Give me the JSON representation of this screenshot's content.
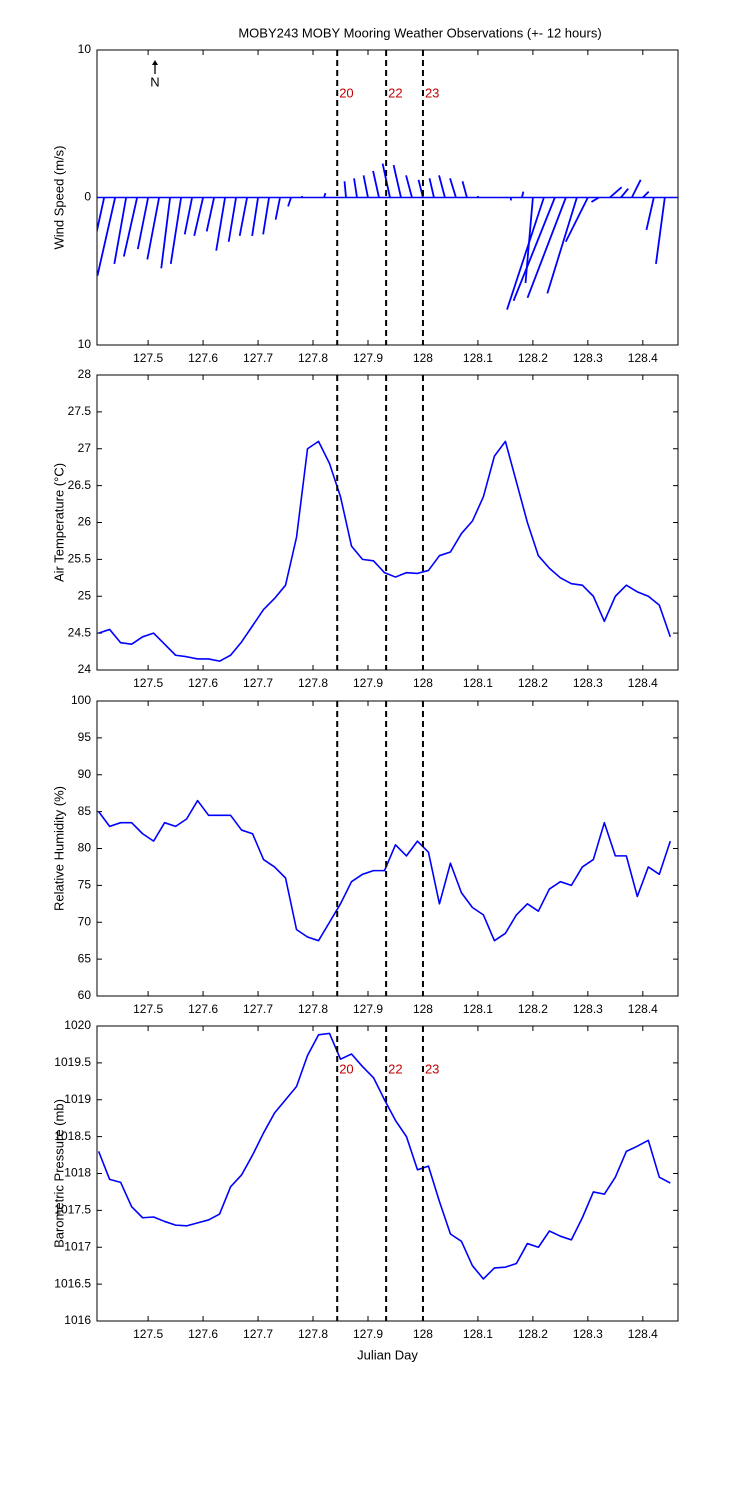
{
  "chart_data": [
    {
      "type": "quiver",
      "title": "MOBY243 MOBY Mooring Weather Observations (+- 12 hours)",
      "ylabel": "Wind Speed (m/s)",
      "north_label": "N",
      "color": "#0000ff",
      "xlim": [
        127.407,
        128.464
      ],
      "xticks": [
        127.5,
        127.6,
        127.7,
        127.8,
        127.9,
        128,
        128.1,
        128.2,
        128.3,
        128.4
      ],
      "ylim": [
        -10,
        10
      ],
      "yticks": [
        {
          "value": -10,
          "label": "10"
        },
        0,
        10
      ],
      "vlines": [
        127.844,
        127.933,
        128.0
      ],
      "vline_labels": [
        "20",
        "22",
        "23"
      ],
      "x": [
        127.42,
        127.44,
        127.46,
        127.48,
        127.5,
        127.52,
        127.54,
        127.56,
        127.58,
        127.6,
        127.62,
        127.64,
        127.66,
        127.68,
        127.7,
        127.72,
        127.74,
        127.76,
        127.78,
        127.8,
        127.82,
        127.84,
        127.86,
        127.88,
        127.9,
        127.92,
        127.94,
        127.96,
        127.98,
        128.0,
        128.02,
        128.04,
        128.06,
        128.08,
        128.1,
        128.12,
        128.14,
        128.16,
        128.18,
        128.2,
        128.22,
        128.24,
        128.26,
        128.28,
        128.3,
        128.32,
        128.34,
        128.36,
        128.38,
        128.4,
        128.42,
        128.44
      ],
      "u": [
        -1.0,
        -1.2,
        -0.8,
        -0.9,
        -0.7,
        -0.8,
        -0.6,
        -0.7,
        -0.5,
        -0.6,
        -0.5,
        -0.6,
        -0.5,
        -0.5,
        -0.4,
        -0.4,
        -0.3,
        -0.2,
        0,
        0,
        0.1,
        0,
        -0.1,
        -0.2,
        -0.3,
        -0.4,
        -0.5,
        -0.5,
        -0.4,
        -0.3,
        -0.3,
        -0.4,
        -0.4,
        -0.3,
        0,
        0,
        0,
        0,
        0.1,
        -0.5,
        -2.5,
        -2.8,
        -2.6,
        -2.0,
        -1.5,
        -0.5,
        0.8,
        0.5,
        0.6,
        0.4,
        -0.5,
        -0.6
      ],
      "v": [
        -4.6,
        -5.3,
        -4.5,
        -4.0,
        -3.5,
        -4.2,
        -4.8,
        -4.5,
        -2.5,
        -2.6,
        -2.3,
        -3.6,
        -3.0,
        -2.6,
        -2.6,
        -2.5,
        -1.5,
        -0.6,
        0.1,
        0,
        0.3,
        0,
        1.1,
        1.3,
        1.5,
        1.8,
        2.3,
        2.2,
        1.5,
        1.2,
        1.3,
        1.5,
        1.3,
        1.1,
        0.1,
        0,
        0,
        -0.2,
        0.4,
        -5.8,
        -7.6,
        -7.0,
        -6.8,
        -6.5,
        -3.0,
        -0.3,
        0.7,
        0.6,
        1.2,
        0.4,
        -2.2,
        -4.5
      ]
    },
    {
      "type": "line",
      "ylabel": "Air Temperature (°C)",
      "color": "#0000ff",
      "xlim": [
        127.407,
        128.464
      ],
      "xticks": [
        127.5,
        127.6,
        127.7,
        127.8,
        127.9,
        128,
        128.1,
        128.2,
        128.3,
        128.4
      ],
      "ylim": [
        24,
        28
      ],
      "yticks": [
        24,
        24.5,
        25,
        25.5,
        26,
        26.5,
        27,
        27.5,
        28
      ],
      "vlines": [
        127.844,
        127.933,
        128.0
      ],
      "x": [
        127.41,
        127.43,
        127.45,
        127.47,
        127.49,
        127.51,
        127.53,
        127.55,
        127.57,
        127.59,
        127.61,
        127.63,
        127.65,
        127.67,
        127.69,
        127.71,
        127.73,
        127.75,
        127.77,
        127.79,
        127.81,
        127.83,
        127.85,
        127.87,
        127.89,
        127.91,
        127.93,
        127.95,
        127.97,
        127.99,
        128.01,
        128.03,
        128.05,
        128.07,
        128.09,
        128.11,
        128.13,
        128.15,
        128.17,
        128.19,
        128.21,
        128.23,
        128.25,
        128.27,
        128.29,
        128.31,
        128.33,
        128.35,
        128.37,
        128.39,
        128.41,
        128.43,
        128.45
      ],
      "values": [
        24.5,
        24.55,
        24.37,
        24.35,
        24.45,
        24.5,
        24.35,
        24.2,
        24.18,
        24.15,
        24.15,
        24.12,
        24.2,
        24.38,
        24.6,
        24.82,
        24.97,
        25.15,
        25.8,
        27.0,
        27.1,
        26.8,
        26.35,
        25.68,
        25.5,
        25.48,
        25.32,
        25.26,
        25.32,
        25.31,
        25.35,
        25.55,
        25.6,
        25.85,
        26.02,
        26.35,
        26.9,
        27.1,
        26.55,
        26.0,
        25.55,
        25.38,
        25.25,
        25.17,
        25.15,
        25.0,
        24.66,
        25.0,
        25.15,
        25.06,
        25.0,
        24.88,
        24.45
      ]
    },
    {
      "type": "line",
      "ylabel": "Relative Humidity (%)",
      "color": "#0000ff",
      "xlim": [
        127.407,
        128.464
      ],
      "xticks": [
        127.5,
        127.6,
        127.7,
        127.8,
        127.9,
        128,
        128.1,
        128.2,
        128.3,
        128.4
      ],
      "ylim": [
        60,
        100
      ],
      "yticks": [
        60,
        65,
        70,
        75,
        80,
        85,
        90,
        95,
        100
      ],
      "vlines": [
        127.844,
        127.933,
        128.0
      ],
      "x": [
        127.41,
        127.43,
        127.45,
        127.47,
        127.49,
        127.51,
        127.53,
        127.55,
        127.57,
        127.59,
        127.61,
        127.63,
        127.65,
        127.67,
        127.69,
        127.71,
        127.73,
        127.75,
        127.77,
        127.79,
        127.81,
        127.83,
        127.85,
        127.87,
        127.89,
        127.91,
        127.93,
        127.95,
        127.97,
        127.99,
        128.01,
        128.03,
        128.05,
        128.07,
        128.09,
        128.11,
        128.13,
        128.15,
        128.17,
        128.19,
        128.21,
        128.23,
        128.25,
        128.27,
        128.29,
        128.31,
        128.33,
        128.35,
        128.37,
        128.39,
        128.41,
        128.43,
        128.45
      ],
      "values": [
        85,
        83,
        83.5,
        83.5,
        82,
        81,
        83.5,
        83,
        84,
        86.5,
        84.5,
        84.5,
        84.5,
        82.5,
        82,
        78.5,
        77.5,
        76,
        69,
        68,
        67.5,
        70,
        72.5,
        75.5,
        76.5,
        77,
        77,
        80.5,
        79,
        81,
        79.5,
        72.5,
        78,
        74,
        72,
        71,
        67.5,
        68.5,
        71,
        72.5,
        71.5,
        74.5,
        75.5,
        75,
        77.5,
        78.5,
        83.5,
        79,
        79,
        73.5,
        77.5,
        76.5,
        81
      ]
    },
    {
      "type": "line",
      "ylabel": "Barometric Pressure (mb)",
      "xlabel": "Julian Day",
      "color": "#0000ff",
      "xlim": [
        127.407,
        128.464
      ],
      "xticks": [
        127.5,
        127.6,
        127.7,
        127.8,
        127.9,
        128,
        128.1,
        128.2,
        128.3,
        128.4
      ],
      "ylim": [
        1016,
        1020
      ],
      "yticks": [
        1016,
        1016.5,
        1017,
        1017.5,
        1018,
        1018.5,
        1019,
        1019.5,
        1020
      ],
      "vlines": [
        127.844,
        127.933,
        128.0
      ],
      "vline_labels": [
        "20",
        "22",
        "23"
      ],
      "x": [
        127.41,
        127.43,
        127.45,
        127.47,
        127.49,
        127.51,
        127.53,
        127.55,
        127.57,
        127.59,
        127.61,
        127.63,
        127.65,
        127.67,
        127.69,
        127.71,
        127.73,
        127.75,
        127.77,
        127.79,
        127.81,
        127.83,
        127.85,
        127.87,
        127.89,
        127.91,
        127.93,
        127.95,
        127.97,
        127.99,
        128.01,
        128.03,
        128.05,
        128.07,
        128.09,
        128.11,
        128.13,
        128.15,
        128.17,
        128.19,
        128.21,
        128.23,
        128.25,
        128.27,
        128.29,
        128.31,
        128.33,
        128.35,
        128.37,
        128.39,
        128.41,
        128.43,
        128.45
      ],
      "values": [
        1018.3,
        1017.92,
        1017.88,
        1017.55,
        1017.4,
        1017.41,
        1017.35,
        1017.3,
        1017.29,
        1017.33,
        1017.37,
        1017.45,
        1017.82,
        1017.98,
        1018.25,
        1018.55,
        1018.82,
        1019.0,
        1019.18,
        1019.6,
        1019.88,
        1019.9,
        1019.55,
        1019.62,
        1019.45,
        1019.3,
        1019.0,
        1018.72,
        1018.5,
        1018.05,
        1018.1,
        1017.62,
        1017.18,
        1017.08,
        1016.75,
        1016.57,
        1016.72,
        1016.73,
        1016.78,
        1017.05,
        1017.0,
        1017.22,
        1017.15,
        1017.1,
        1017.4,
        1017.75,
        1017.72,
        1017.95,
        1018.3,
        1018.37,
        1018.45,
        1017.95,
        1017.87
      ]
    }
  ]
}
